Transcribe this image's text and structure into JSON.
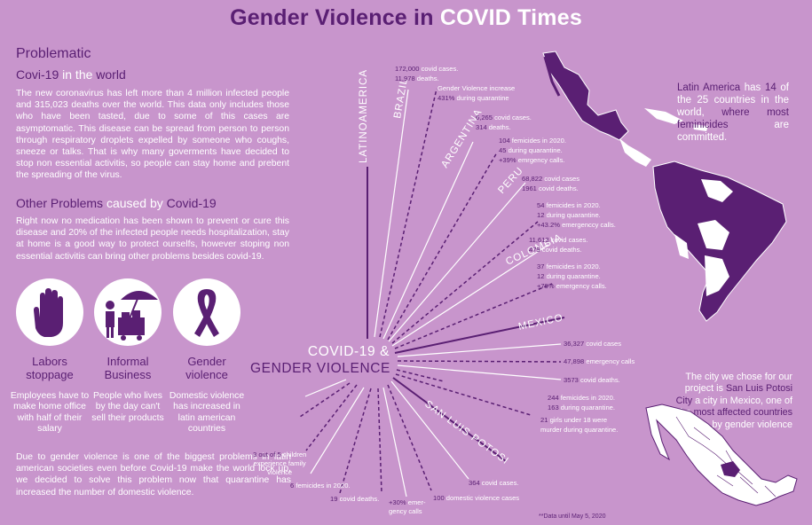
{
  "title": {
    "part1": "Gender Violence in ",
    "part2": "COVID Times"
  },
  "left": {
    "problematic": "Problematic",
    "covid_heading": {
      "a": "Covi-19 ",
      "b": "in the ",
      "c": "world"
    },
    "covid_text": "The new coronavirus has left more than 4 million infected people and  315,023 deaths over the world. This data only includes those who have been tasted, due to some of this cases are asymptomatic. This disease can be spread from person to person through respiratory droplets expelled by someone who coughs, sneeze or talks. That is why many goverments have decided to stop non essential activitis, so people can stay home and prebent the spreading of the virus.",
    "other_heading": {
      "a": "Other Problems ",
      "b": "caused by ",
      "c": "Covid-19"
    },
    "other_text": "Right now no medication has been shown to prevent or cure this disease and 20% of the infected people needs hospitalization, stay at home is a good way to protect ourselfs, however stoping non essential activitis can bring other problems besides covid-19.",
    "cards": [
      {
        "title": "Labors stoppage",
        "body": "Employees have to make home office with half of their salary",
        "icon": "hand-stop-icon"
      },
      {
        "title": "Informal Business",
        "body": "People who lives by the day can't sell their products",
        "icon": "street-vendor-icon"
      },
      {
        "title": "Gender violence",
        "body": "Domestic violence has increased in latin american countries",
        "icon": "awareness-ribbon-icon"
      }
    ],
    "bottom_text": "Due to gender violence is one of the biggest problems in latin american societies even before Covid-19 make the world lock up, we decided to solve this problem now that quarantine has increased the number of domestic violence."
  },
  "center": {
    "hub": {
      "line1": "COVID-19 &",
      "line2": "GENDER VIOLENCE"
    },
    "region": "LATINOAMERICA",
    "countries": {
      "brazil": "BRAZIL",
      "argentina": "ARGENTINA",
      "peru": "PERU",
      "colombia": "COLOMBIA",
      "mexico": "MEXICO",
      "slp": "SAN LUIS POTOSI"
    },
    "stats": {
      "brazil": [
        {
          "n": "172,000",
          "t": " covid cases."
        },
        {
          "n": "11,978",
          "t": " deaths."
        },
        {
          "n": "",
          "t": "Gender Violence increase"
        },
        {
          "n": "431%",
          "t": " during quarantine"
        }
      ],
      "argentina": [
        {
          "n": "6,265",
          "t": " covid cases."
        },
        {
          "n": "314",
          "t": " deaths."
        },
        {
          "n": "104",
          "t": " femicides in 2020."
        },
        {
          "n": "45",
          "t": " during quarantine."
        },
        {
          "n": "+39%",
          "t": " emrgency calls."
        }
      ],
      "peru": [
        {
          "n": "68,822",
          "t": " covid cases"
        },
        {
          "n": "1961",
          "t": " covid deaths."
        },
        {
          "n": "54",
          "t": " femicides in 2020."
        },
        {
          "n": "12",
          "t": " during quarantine."
        },
        {
          "n": "+43.2%",
          "t": " emergenccy calls."
        }
      ],
      "colombia": [
        {
          "n": "11,613",
          "t": " covid cases."
        },
        {
          "n": "479",
          "t": " covid deaths."
        },
        {
          "n": "37",
          "t": " femicides in 2020."
        },
        {
          "n": "12",
          "t": " during quarantine."
        },
        {
          "n": "+79%",
          "t": " emergency calls."
        }
      ],
      "mexico": [
        {
          "n": "36,327",
          "t": " covid cases"
        },
        {
          "n": "47,898",
          "t": " emergency calls"
        },
        {
          "n": "3573",
          "t": " covid deaths."
        },
        {
          "n": "244",
          "t": " femicides in 2020."
        },
        {
          "n": "163",
          "t": " during quarantine."
        },
        {
          "n": "21",
          "t": " girls under 18 were"
        },
        {
          "n": "",
          "t": "murder during quarantine."
        }
      ],
      "slp": [
        {
          "n": "364",
          "t": " covid cases."
        },
        {
          "n": "100",
          "t": " domestic violence cases"
        },
        {
          "n": "+30%",
          "t": " emer-"
        },
        {
          "n": "",
          "t": "gency calls"
        },
        {
          "n": "19",
          "t": " covid deaths."
        },
        {
          "n": "6",
          "t": " femicides in 2020."
        },
        {
          "n": "3 out of 5",
          "t": " children"
        },
        {
          "n": "",
          "t": "experience family"
        },
        {
          "n": "",
          "t": "violence"
        }
      ]
    },
    "footnote": "**Data until May 5, 2020"
  },
  "right": {
    "latam": {
      "a": "Latin America ",
      "b": "has ",
      "c": "14",
      "d": " of the 25 countries in the world, ",
      "e": "where most feminicides",
      "f": " are committed."
    },
    "city": {
      "a": "The city we chose for our project is ",
      "b": "San Luis Potosi City",
      "c": " a city in Mexico, one of the ",
      "d": "most affected countries",
      "e": " by gender violence"
    }
  },
  "colors": {
    "background": "#c895cc",
    "accent": "#5a1f73",
    "text": "#ffffff"
  }
}
